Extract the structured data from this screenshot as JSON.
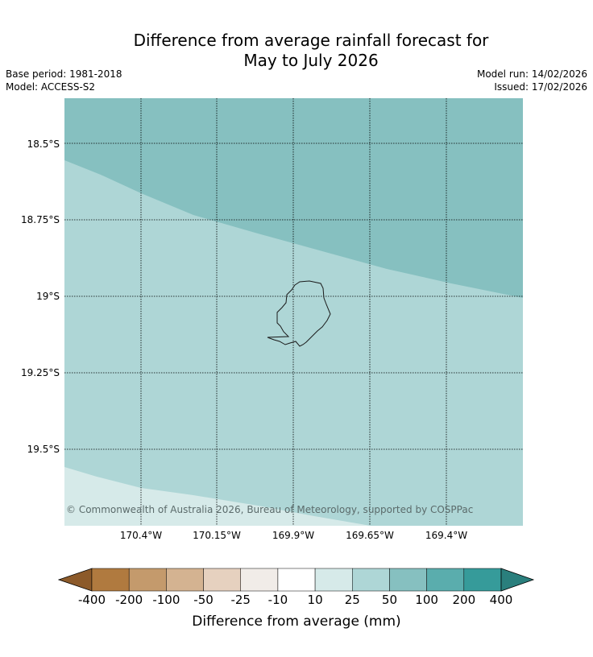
{
  "title_line1": "Difference from average rainfall forecast for",
  "title_line2": "May to July 2026",
  "base_period": "Base period: 1981-2018",
  "model": "Model: ACCESS-S2",
  "model_run": "Model run: 14/02/2026",
  "issued": "Issued: 17/02/2026",
  "copyright": "© Commonwealth of Australia 2026, Bureau of Meteorology, supported by COSPPac",
  "lat_labels": [
    "18.5°S",
    "18.75°S",
    "19°S",
    "19.25°S",
    "19.5°S"
  ],
  "lon_labels": [
    "170.4°W",
    "170.15°W",
    "169.9°W",
    "169.65°W",
    "169.4°W"
  ],
  "colorbar": {
    "label": "Difference from average (mm)",
    "ticks": [
      "-400",
      "-200",
      "-100",
      "-50",
      "-25",
      "-10",
      "10",
      "25",
      "50",
      "100",
      "200",
      "400"
    ],
    "colors": [
      "#8c5a2a",
      "#b07a3f",
      "#c49a6c",
      "#d4b391",
      "#e6d1bf",
      "#f1ece8",
      "#ffffff",
      "#d6eae9",
      "#aed6d6",
      "#86c0c0",
      "#5aadad",
      "#369b9a",
      "#2a7f7d"
    ]
  },
  "map": {
    "region_colors": {
      "upper": "#86c0c0",
      "middle": "#aed6d6",
      "lower": "#d6eae9"
    }
  }
}
